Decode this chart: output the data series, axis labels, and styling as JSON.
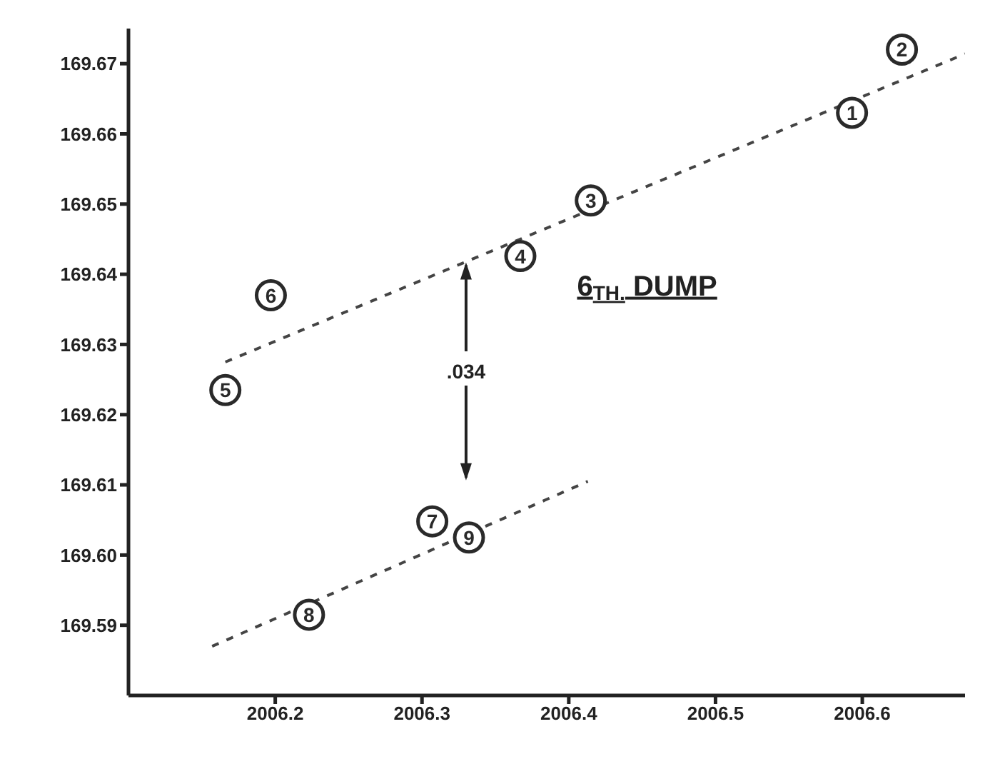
{
  "chart_data": {
    "type": "scatter",
    "xlim": [
      2006.1,
      2006.67
    ],
    "ylim": [
      169.58,
      169.675
    ],
    "xticks": [
      2006.2,
      2006.3,
      2006.4,
      2006.5,
      2006.6
    ],
    "yticks": [
      {
        "value": 169.59,
        "label": "169.59"
      },
      {
        "value": 169.6,
        "label": "169.60"
      },
      {
        "value": 169.61,
        "label": "169.61"
      },
      {
        "value": 169.62,
        "label": "169.62"
      },
      {
        "value": 169.63,
        "label": "169.63"
      },
      {
        "value": 169.64,
        "label": "169.64"
      },
      {
        "value": 169.65,
        "label": "169.65"
      },
      {
        "value": 169.66,
        "label": "169.66"
      },
      {
        "value": 169.67,
        "label": "169.67"
      }
    ],
    "grid": false,
    "series": [
      {
        "type": "scatter",
        "name": "1",
        "marker": "circle",
        "color": "#2a2a2a",
        "x": [
          2006.593
        ],
        "values": [
          169.663
        ]
      },
      {
        "name": "2",
        "marker": "circle",
        "color": "#2a2a2a",
        "x": [
          2006.627
        ],
        "values": [
          169.672
        ]
      },
      {
        "name": "3",
        "marker": "circle",
        "color": "#2a2a2a",
        "x": [
          2006.415
        ],
        "values": [
          169.6505
        ]
      },
      {
        "name": "4",
        "marker": "circle",
        "color": "#2a2a2a",
        "x": [
          2006.367
        ],
        "values": [
          169.6426
        ]
      },
      {
        "name": "5",
        "marker": "circle",
        "color": "#2a2a2a",
        "x": [
          2006.166
        ],
        "values": [
          169.6235
        ]
      },
      {
        "name": "6",
        "marker": "circle",
        "color": "#2a2a2a",
        "x": [
          2006.197
        ],
        "values": [
          169.637
        ]
      },
      {
        "name": "7",
        "marker": "circle",
        "color": "#2a2a2a",
        "x": [
          2006.307
        ],
        "values": [
          169.6048
        ]
      },
      {
        "name": "8",
        "marker": "circle",
        "color": "#2a2a2a",
        "x": [
          2006.223
        ],
        "values": [
          169.5915
        ]
      },
      {
        "name": "9",
        "marker": "circle",
        "color": "#2a2a2a",
        "x": [
          2006.332
        ],
        "values": [
          169.6025
        ]
      },
      {
        "type": "line",
        "marker": "none",
        "color": "#444444",
        "line_style": "dashed",
        "x": [
          2006.166,
          2006.67
        ],
        "values": [
          169.6275,
          169.6714
        ]
      },
      {
        "type": "line",
        "marker": "none",
        "color": "#444444",
        "line_style": "dashed",
        "x": [
          2006.157,
          2006.413
        ],
        "values": [
          169.587,
          169.6105
        ]
      }
    ],
    "annotations": [
      {
        "text": ".034",
        "x": 2006.33,
        "y": 169.6417
      },
      "6$_{TH.}$ DUMP"
    ]
  }
}
